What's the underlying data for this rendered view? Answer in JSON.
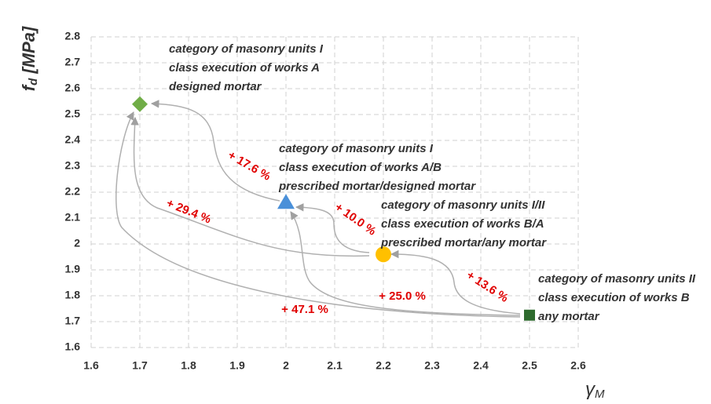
{
  "chart_data": {
    "type": "scatter",
    "xlabel": {
      "main": "γ",
      "sub": "M"
    },
    "ylabel": {
      "main": "f",
      "sub": "d",
      "rest": " [MPa]"
    },
    "x": [
      1.7,
      2.0,
      2.2,
      2.5
    ],
    "values": [
      2.54,
      2.16,
      1.96,
      1.725
    ],
    "colors": [
      "#70ad47",
      "#4a90d9",
      "#ffc000",
      "#2e6b2e"
    ],
    "markers": [
      "diamond",
      "triangle",
      "circle",
      "square"
    ],
    "annotations": [
      [
        "category of masonry units I",
        "class execution of works A",
        "designed mortar"
      ],
      [
        "category of masonry units I",
        "class execution of works A/B",
        "prescribed mortar/designed mortar"
      ],
      [
        "category of masonry units I/II",
        "class execution of works B/A",
        "prescribed mortar/any mortar"
      ],
      [
        "category of masonry units II",
        "class execution of works B",
        "any mortar"
      ]
    ],
    "arrow_labels": [
      "+ 17.6 %",
      "+ 10.0 %",
      "+ 13.6 %",
      "+ 29.4 %",
      "+ 25.0 %",
      "+ 47.1 %"
    ],
    "xlim": [
      1.6,
      2.6
    ],
    "xticks": [
      1.6,
      1.7,
      1.8,
      1.9,
      2,
      2.1,
      2.2,
      2.3,
      2.4,
      2.5,
      2.6
    ],
    "ylim": [
      1.6,
      2.8
    ],
    "yticks": [
      1.6,
      1.7,
      1.8,
      1.9,
      2,
      2.1,
      2.2,
      2.3,
      2.4,
      2.5,
      2.6,
      2.7,
      2.8
    ],
    "grid": true
  }
}
